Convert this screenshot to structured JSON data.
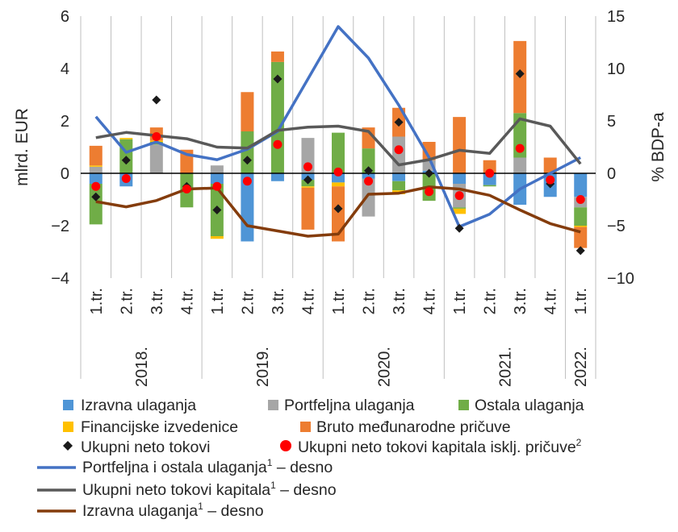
{
  "chart_data": {
    "type": "bar",
    "stacked": true,
    "yaxis_left": {
      "label": "mlrd. EUR",
      "range": [
        -4,
        6
      ],
      "ticks": [
        -4,
        -2,
        0,
        2,
        4,
        6
      ],
      "tick_labels": [
        "−4",
        "−2",
        "0",
        "2",
        "4",
        "6"
      ]
    },
    "yaxis_right": {
      "label": "% BDP-a",
      "range": [
        -10,
        15
      ],
      "ticks": [
        -10,
        -5,
        0,
        5,
        10,
        15
      ],
      "tick_labels": [
        "−10",
        "−5",
        "0",
        "5",
        "10",
        "15"
      ]
    },
    "quarter_labels": [
      "1.tr.",
      "2.tr.",
      "3.tr.",
      "4.tr.",
      "1.tr.",
      "2.tr.",
      "3.tr.",
      "4.tr.",
      "1.tr.",
      "2.tr.",
      "3.tr.",
      "4.tr.",
      "1.tr.",
      "2.tr.",
      "3.tr.",
      "4.tr.",
      "1.tr."
    ],
    "year_groups": [
      {
        "label": "2018.",
        "start": 0,
        "count": 4
      },
      {
        "label": "2019.",
        "start": 4,
        "count": 4
      },
      {
        "label": "2020.",
        "start": 8,
        "count": 4
      },
      {
        "label": "2021.",
        "start": 12,
        "count": 4
      },
      {
        "label": "2022.",
        "start": 16,
        "count": 1
      }
    ],
    "bar_series": [
      {
        "name": "Izravna ulaganja",
        "color": "#4F95D6",
        "values": [
          -0.4,
          -0.5,
          0.0,
          0.0,
          -0.4,
          -2.6,
          -0.3,
          -0.25,
          -0.35,
          -0.2,
          -0.3,
          0.1,
          -0.4,
          -0.45,
          -1.2,
          -0.9,
          -0.9
        ]
      },
      {
        "name": "Portfeljna ulaganja",
        "color": "#A6A6A6",
        "values": [
          0.25,
          0.0,
          1.1,
          0.0,
          0.3,
          0.0,
          0.0,
          1.35,
          0.0,
          -1.45,
          1.4,
          0.4,
          -0.9,
          0.0,
          0.6,
          0.0,
          -0.4
        ]
      },
      {
        "name": "Ostala ulaganja",
        "color": "#70AD47",
        "values": [
          -1.55,
          1.3,
          0.1,
          -1.3,
          -2.0,
          1.6,
          4.25,
          -0.25,
          1.55,
          0.95,
          -0.35,
          -1.05,
          -0.05,
          -0.05,
          1.7,
          0.0,
          -0.7
        ]
      },
      {
        "name": "Financijske izvedenice",
        "color": "#FFC000",
        "values": [
          0.05,
          0.05,
          0.05,
          0.0,
          -0.1,
          0.0,
          0.0,
          -0.05,
          -0.15,
          0.0,
          -0.15,
          0.0,
          -0.2,
          0.0,
          0.0,
          0.0,
          -0.05
        ]
      },
      {
        "name": "Bruto međunarodne pričuve",
        "color": "#ED7D31",
        "values": [
          0.75,
          0.0,
          0.5,
          0.9,
          0.0,
          1.5,
          0.4,
          -1.6,
          -2.1,
          0.8,
          1.1,
          0.7,
          2.15,
          0.5,
          2.75,
          0.6,
          -0.8
        ]
      }
    ],
    "marker_series": [
      {
        "name": "Ukupni neto tokovi",
        "marker": "diamond",
        "color": "#1a1a1a",
        "values": [
          -0.9,
          0.5,
          2.8,
          -0.5,
          -1.4,
          0.5,
          3.6,
          -0.25,
          -1.35,
          0.1,
          1.95,
          0.0,
          -2.1,
          0.0,
          3.8,
          -0.4,
          -2.95
        ]
      },
      {
        "name": "Ukupni neto tokovi kapitala isklj. pričuve",
        "sup": "2",
        "marker": "circle",
        "color": "#FF0000",
        "values": [
          -0.5,
          -0.2,
          1.4,
          -0.6,
          -0.5,
          -0.3,
          1.1,
          0.25,
          0.05,
          -0.3,
          0.9,
          -0.7,
          -0.85,
          0.0,
          0.95,
          -0.25,
          -1.0
        ]
      }
    ],
    "line_series": [
      {
        "name": "Portfeljna i ostala ulaganja",
        "sup": "1",
        "suffix": " – desno",
        "axis": "right",
        "color": "#4472C4",
        "values": [
          5.4,
          2.0,
          3.0,
          1.8,
          1.3,
          2.3,
          4.0,
          9.0,
          14.0,
          11.0,
          6.5,
          1.5,
          -5.1,
          -3.9,
          -1.5,
          0.0,
          1.5
        ]
      },
      {
        "name": "Ukupni neto tokovi kapitala",
        "sup": "1",
        "suffix": " – desno",
        "axis": "right",
        "color": "#595959",
        "values": [
          3.4,
          3.9,
          3.6,
          3.3,
          2.5,
          2.4,
          4.1,
          4.4,
          4.5,
          4.0,
          0.8,
          1.3,
          2.2,
          1.9,
          5.2,
          4.5,
          0.9
        ]
      },
      {
        "name": "Izravna ulaganja",
        "sup": "1",
        "suffix": " – desno",
        "axis": "right",
        "color": "#843C0C",
        "values": [
          -2.7,
          -3.2,
          -2.6,
          -1.5,
          -1.4,
          -5.0,
          -5.5,
          -6.0,
          -5.8,
          -2.0,
          -1.9,
          -1.3,
          -1.5,
          -2.1,
          -3.5,
          -4.8,
          -5.6
        ]
      }
    ],
    "legend_position": "bottom",
    "grid": false
  }
}
